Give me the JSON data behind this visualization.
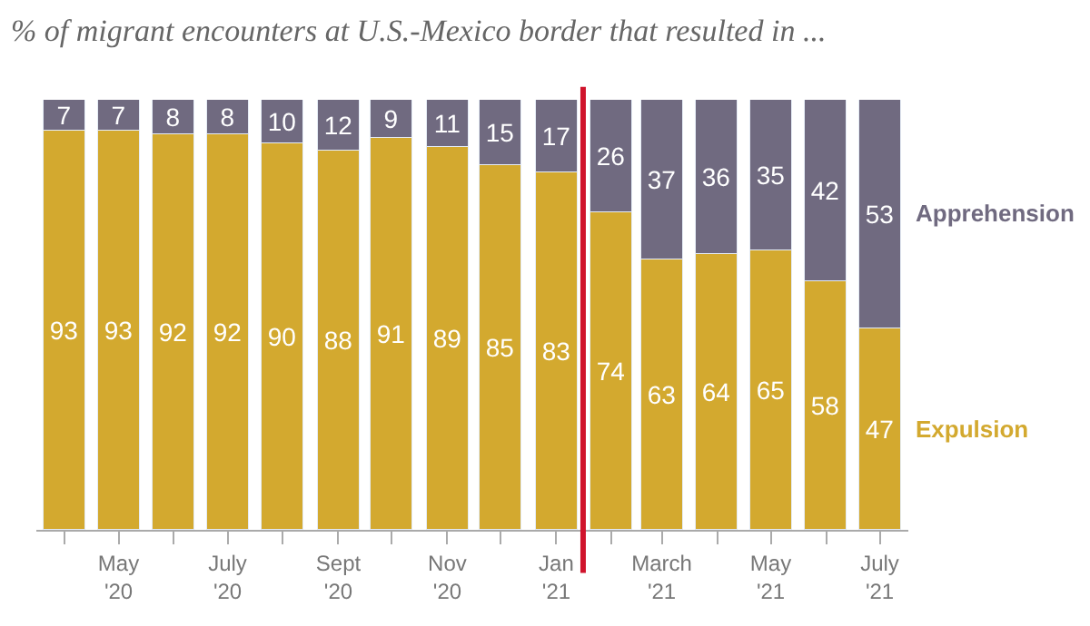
{
  "chart_data": {
    "type": "bar",
    "title": "% of migrant encounters at U.S.-Mexico border that resulted in ...",
    "stacked": true,
    "data_labels": true,
    "legend": false,
    "tick_labels": "x",
    "ylim": [
      0,
      100
    ],
    "x": [
      "2020-04",
      "2020-05",
      "2020-06",
      "2020-07",
      "2020-08",
      "2020-09",
      "2020-10",
      "2020-11",
      "2020-12",
      "2021-01",
      "2021-02",
      "2021-03",
      "2021-04",
      "2021-05",
      "2021-06",
      "2021-07"
    ],
    "xlim": [
      "2020-03-16",
      "2021-07-17"
    ],
    "xticks": [
      {
        "value": "2020-04",
        "label": null
      },
      {
        "value": "2020-05",
        "label": "May\n'20"
      },
      {
        "value": "2020-06",
        "label": null
      },
      {
        "value": "2020-07",
        "label": "July\n'20"
      },
      {
        "value": "2020-08",
        "label": null
      },
      {
        "value": "2020-09",
        "label": "Sept\n'20"
      },
      {
        "value": "2020-10",
        "label": null
      },
      {
        "value": "2020-11",
        "label": "Nov\n'20"
      },
      {
        "value": "2020-12",
        "label": null
      },
      {
        "value": "2021-01",
        "label": "Jan\n'21"
      },
      {
        "value": "2021-02",
        "label": null
      },
      {
        "value": "2021-03",
        "label": "March\n'21"
      },
      {
        "value": "2021-04",
        "label": null
      },
      {
        "value": "2021-05",
        "label": "May\n'21"
      },
      {
        "value": "2021-06",
        "label": null
      },
      {
        "value": "2021-07",
        "label": "July\n'21"
      }
    ],
    "series": [
      {
        "name": "Expulsion",
        "color": "#d3a92f",
        "values": [
          93,
          93,
          92,
          92,
          90,
          88,
          91,
          89,
          85,
          83,
          74,
          63,
          64,
          65,
          58,
          47
        ]
      },
      {
        "name": "Apprehension",
        "color": "#706a80",
        "values": [
          7,
          7,
          8,
          8,
          10,
          12,
          9,
          11,
          15,
          17,
          26,
          37,
          36,
          35,
          42,
          53
        ]
      }
    ],
    "ref_lines": [
      {
        "axis": "x",
        "value": "2021-01-16",
        "color": "#d0142c"
      }
    ]
  }
}
